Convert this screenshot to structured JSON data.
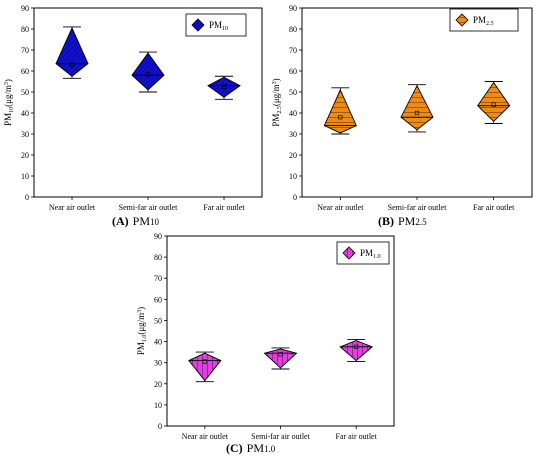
{
  "chart_data": [
    {
      "type": "diamond-box",
      "panel_label": "(A)",
      "panel_title_main": "PM",
      "panel_title_sub": "10",
      "ylabel_main": "PM",
      "ylabel_sub": "10",
      "ylabel_unit_main": "(μg/m",
      "ylabel_unit_sup": "3",
      "ylabel_unit_end": ")",
      "legend_main": "PM",
      "legend_sub": "10",
      "legend_placement": "top-right",
      "ylim": [
        0,
        90
      ],
      "yticks": [
        0,
        10,
        20,
        30,
        40,
        50,
        60,
        70,
        80,
        90
      ],
      "ytick_labels": [
        "0",
        "10",
        "20",
        "30",
        "40",
        "50",
        "60",
        "70",
        "80",
        "90"
      ],
      "categories": [
        "Near air outlet",
        "Semi-far air outlet",
        "Far air outlet"
      ],
      "fill_color": "#1010d0",
      "hatch": "diagonal",
      "boxes": [
        {
          "max": 81,
          "q3": 80.5,
          "median": 63.5,
          "mean": 63,
          "q1": 57.5,
          "min": 56.5
        },
        {
          "max": 69,
          "q3": 68.5,
          "median": 58,
          "mean": 58.5,
          "q1": 51,
          "min": 50
        },
        {
          "max": 57.5,
          "q3": 57,
          "median": 53,
          "mean": 52.5,
          "q1": 47.5,
          "min": 46.5
        }
      ]
    },
    {
      "type": "diamond-box",
      "panel_label": "(B)",
      "panel_title_main": "PM",
      "panel_title_sub": "2.5",
      "ylabel_main": "PM",
      "ylabel_sub": "2.5",
      "ylabel_unit_main": "(μg/m",
      "ylabel_unit_sup": "3",
      "ylabel_unit_end": ")",
      "legend_main": "PM",
      "legend_sub": "2.5",
      "legend_placement": "top-right",
      "ylim": [
        0,
        90
      ],
      "yticks": [
        0,
        10,
        20,
        30,
        40,
        50,
        60,
        70,
        80,
        90
      ],
      "ytick_labels": [
        "0",
        "10",
        "20",
        "30",
        "40",
        "50",
        "60",
        "70",
        "80",
        "90"
      ],
      "categories": [
        "Near air outlet",
        "Semi-far air outlet",
        "Far air outlet"
      ],
      "fill_color": "#f08a14",
      "hatch": "horizontal",
      "boxes": [
        {
          "max": 52,
          "q3": 51,
          "median": 34,
          "mean": 38,
          "q1": 30.5,
          "min": 30
        },
        {
          "max": 53.5,
          "q3": 53,
          "median": 38,
          "mean": 40,
          "q1": 32,
          "min": 31
        },
        {
          "max": 55,
          "q3": 54.5,
          "median": 43.5,
          "mean": 44,
          "q1": 36,
          "min": 35
        }
      ]
    },
    {
      "type": "diamond-box",
      "panel_label": "(C)",
      "panel_title_main": "PM",
      "panel_title_sub": "1.0",
      "ylabel_main": "PM",
      "ylabel_sub": "1.0",
      "ylabel_unit_main": "(μg/m",
      "ylabel_unit_sup": "3",
      "ylabel_unit_end": ")",
      "legend_main": "PM",
      "legend_sub": "1.0",
      "legend_placement": "top-center",
      "ylim": [
        0,
        90
      ],
      "yticks": [
        0,
        10,
        20,
        30,
        40,
        50,
        60,
        70,
        80,
        90
      ],
      "ytick_labels": [
        "0",
        "10",
        "20",
        "30",
        "40",
        "50",
        "60",
        "70",
        "80",
        "90"
      ],
      "categories": [
        "Near air outlet",
        "Semi-far air outlet",
        "Far air outlet"
      ],
      "fill_color": "#e040e0",
      "hatch": "vertical",
      "boxes": [
        {
          "max": 35,
          "q3": 34.5,
          "median": 31,
          "mean": 30.5,
          "q1": 21.5,
          "min": 21
        },
        {
          "max": 37,
          "q3": 36.5,
          "median": 34.5,
          "mean": 34,
          "q1": 27.5,
          "min": 27
        },
        {
          "max": 41,
          "q3": 40.5,
          "median": 37.5,
          "mean": 37.5,
          "q1": 31,
          "min": 30.5
        }
      ]
    }
  ]
}
